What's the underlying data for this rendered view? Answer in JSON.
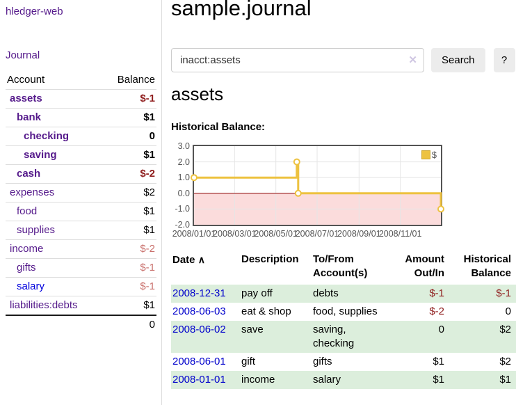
{
  "app": {
    "title": "hledger-web"
  },
  "sidebar": {
    "nav_journal": "Journal",
    "table": {
      "account_header": "Account",
      "balance_header": "Balance",
      "rows": [
        {
          "account": "assets",
          "level": 1,
          "bold": true,
          "balance": "$-1"
        },
        {
          "account": "bank",
          "level": 2,
          "bold": true,
          "balance": "$1"
        },
        {
          "account": "checking",
          "level": 3,
          "bold": true,
          "balance": "0"
        },
        {
          "account": "saving",
          "level": 3,
          "bold": true,
          "balance": "$1"
        },
        {
          "account": "cash",
          "level": 2,
          "bold": true,
          "balance": "$-2"
        },
        {
          "account": "expenses",
          "level": 1,
          "bold": false,
          "balance": "$2"
        },
        {
          "account": "food",
          "level": 2,
          "bold": false,
          "balance": "$1"
        },
        {
          "account": "supplies",
          "level": 2,
          "bold": false,
          "balance": "$1"
        },
        {
          "account": "income",
          "level": 1,
          "bold": false,
          "balance": "$-2"
        },
        {
          "account": "gifts",
          "level": 2,
          "bold": false,
          "balance": "$-1"
        },
        {
          "account": "salary",
          "level": 2,
          "bold": false,
          "balance": "$-1",
          "link_color": "blue"
        },
        {
          "account": "liabilities:debts",
          "level": 1,
          "bold": false,
          "balance": "$1"
        }
      ],
      "total": "0"
    }
  },
  "header": {
    "title": "sample.journal"
  },
  "search": {
    "value": "inacct:assets",
    "clear_icon": "✕",
    "button_label": "Search",
    "help_label": "?"
  },
  "main": {
    "account_title": "assets",
    "chart_title": "Historical Balance:"
  },
  "chart_data": {
    "type": "line",
    "step": true,
    "title": "Historical Balance:",
    "ylim": [
      -2,
      3
    ],
    "x_range_days": 365,
    "yticks": [
      {
        "v": 3,
        "label": "3.0"
      },
      {
        "v": 2,
        "label": "2.0"
      },
      {
        "v": 1,
        "label": "1.0"
      },
      {
        "v": 0,
        "label": "0.0"
      },
      {
        "v": -1,
        "label": "-1.0"
      },
      {
        "v": -2,
        "label": "-2.0"
      }
    ],
    "xticks": [
      {
        "day": 0,
        "label": "2008/01/01"
      },
      {
        "day": 60,
        "label": "2008/03/01"
      },
      {
        "day": 121,
        "label": "2008/05/01"
      },
      {
        "day": 182,
        "label": "2008/07/01"
      },
      {
        "day": 244,
        "label": "2008/09/01"
      },
      {
        "day": 305,
        "label": "2008/11/01"
      }
    ],
    "series": [
      {
        "name": "$",
        "color": "#edc240",
        "points": [
          {
            "date": "2008-01-01",
            "day": 0,
            "y": 1
          },
          {
            "date": "2008-06-01",
            "day": 152,
            "y": 2
          },
          {
            "date": "2008-06-03",
            "day": 154,
            "y": 0
          },
          {
            "date": "2008-12-31",
            "day": 365,
            "y": -1
          }
        ]
      }
    ],
    "grid": true,
    "grid_color": "#e6e6e6",
    "negative_fill": "#fbdcdc",
    "zero_line_color": "#8b0000",
    "legend": {
      "label": "$",
      "position": "top-right",
      "swatch_color": "#edc240"
    }
  },
  "register": {
    "sort_arrow": "∧",
    "columns": {
      "date": "Date",
      "description": "Description",
      "accounts": "To/From\nAccount(s)",
      "amount": "Amount\nOut/In",
      "balance": "Historical\nBalance"
    },
    "rows": [
      {
        "date": "2008-12-31",
        "description": "pay off",
        "accounts": "debts",
        "amount": "$-1",
        "balance": "$-1"
      },
      {
        "date": "2008-06-03",
        "description": "eat & shop",
        "accounts": "food, supplies",
        "amount": "$-2",
        "balance": "0"
      },
      {
        "date": "2008-06-02",
        "description": "save",
        "accounts": "saving, checking",
        "amount": "0",
        "balance": "$2"
      },
      {
        "date": "2008-06-01",
        "description": "gift",
        "accounts": "gifts",
        "amount": "$1",
        "balance": "$2"
      },
      {
        "date": "2008-01-01",
        "description": "income",
        "accounts": "salary",
        "amount": "$1",
        "balance": "$1"
      }
    ]
  },
  "colors": {
    "link_purple": "#551a8b",
    "link_blue": "#0000cc",
    "negative_strong": "#8f1d1d",
    "negative_soft": "#c9706c",
    "row_stripe_green": "#dceedc",
    "chart_line": "#edc240"
  }
}
